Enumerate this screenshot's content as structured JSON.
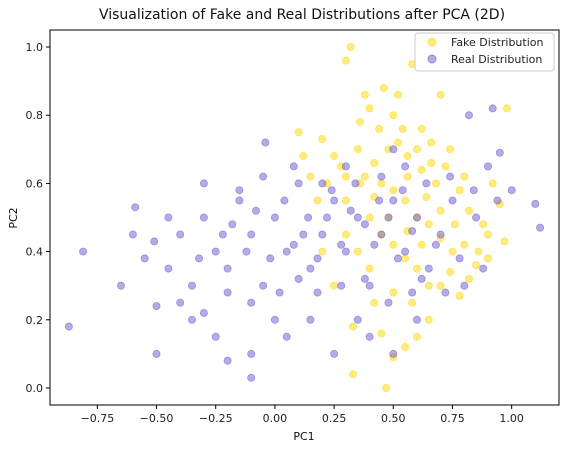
{
  "chart_data": {
    "type": "scatter",
    "title": "Visualization of Fake and Real Distributions after PCA (2D)",
    "xlabel": "PC1",
    "ylabel": "PC2",
    "xlim": [
      -0.95,
      1.2
    ],
    "ylim": [
      -0.05,
      1.05
    ],
    "xticks": [
      -0.75,
      -0.5,
      -0.25,
      0.0,
      0.25,
      0.5,
      0.75,
      1.0
    ],
    "xtick_labels": [
      "−0.75",
      "−0.50",
      "−0.25",
      "0.00",
      "0.25",
      "0.50",
      "0.75",
      "1.00"
    ],
    "yticks": [
      0.0,
      0.2,
      0.4,
      0.6,
      0.8,
      1.0
    ],
    "ytick_labels": [
      "0.0",
      "0.2",
      "0.4",
      "0.6",
      "0.8",
      "1.0"
    ],
    "grid": false,
    "legend_position": "top-right",
    "series": [
      {
        "name": "Fake Distribution",
        "color": "#FFD700",
        "points": [
          [
            0.32,
            1.0
          ],
          [
            0.47,
            0.0
          ],
          [
            0.58,
            0.95
          ],
          [
            0.3,
            0.96
          ],
          [
            0.98,
            0.82
          ],
          [
            0.1,
            0.75
          ],
          [
            0.2,
            0.73
          ],
          [
            0.4,
            0.82
          ],
          [
            0.5,
            0.8
          ],
          [
            0.62,
            0.76
          ],
          [
            0.7,
            0.86
          ],
          [
            0.92,
            0.6
          ],
          [
            0.95,
            0.54
          ],
          [
            0.9,
            0.45
          ],
          [
            0.97,
            0.43
          ],
          [
            0.85,
            0.36
          ],
          [
            0.82,
            0.32
          ],
          [
            0.78,
            0.27
          ],
          [
            0.65,
            0.2
          ],
          [
            0.6,
            0.15
          ],
          [
            0.55,
            0.12
          ],
          [
            0.45,
            0.16
          ],
          [
            0.33,
            0.18
          ],
          [
            0.33,
            0.04
          ],
          [
            0.5,
            0.09
          ],
          [
            0.25,
            0.3
          ],
          [
            0.2,
            0.4
          ],
          [
            0.3,
            0.55
          ],
          [
            0.38,
            0.62
          ],
          [
            0.42,
            0.66
          ],
          [
            0.45,
            0.6
          ],
          [
            0.5,
            0.58
          ],
          [
            0.55,
            0.55
          ],
          [
            0.6,
            0.5
          ],
          [
            0.65,
            0.48
          ],
          [
            0.7,
            0.44
          ],
          [
            0.75,
            0.4
          ],
          [
            0.48,
            0.7
          ],
          [
            0.52,
            0.72
          ],
          [
            0.56,
            0.68
          ],
          [
            0.35,
            0.7
          ],
          [
            0.28,
            0.65
          ],
          [
            0.22,
            0.6
          ],
          [
            0.18,
            0.55
          ],
          [
            0.4,
            0.5
          ],
          [
            0.45,
            0.45
          ],
          [
            0.5,
            0.42
          ],
          [
            0.55,
            0.38
          ],
          [
            0.6,
            0.35
          ],
          [
            0.65,
            0.3
          ],
          [
            0.4,
            0.35
          ],
          [
            0.35,
            0.4
          ],
          [
            0.3,
            0.45
          ],
          [
            0.42,
            0.25
          ],
          [
            0.5,
            0.28
          ],
          [
            0.58,
            0.25
          ],
          [
            0.68,
            0.6
          ],
          [
            0.72,
            0.65
          ],
          [
            0.78,
            0.58
          ],
          [
            0.82,
            0.52
          ],
          [
            0.88,
            0.48
          ],
          [
            0.62,
            0.64
          ],
          [
            0.66,
            0.72
          ],
          [
            0.44,
            0.76
          ],
          [
            0.36,
            0.78
          ],
          [
            0.25,
            0.68
          ],
          [
            0.15,
            0.62
          ],
          [
            0.12,
            0.68
          ],
          [
            0.46,
            0.88
          ],
          [
            0.52,
            0.86
          ],
          [
            0.38,
            0.86
          ],
          [
            0.56,
            0.62
          ],
          [
            0.64,
            0.56
          ],
          [
            0.7,
            0.52
          ],
          [
            0.76,
            0.48
          ],
          [
            0.8,
            0.42
          ],
          [
            0.86,
            0.4
          ],
          [
            0.9,
            0.38
          ],
          [
            0.74,
            0.34
          ],
          [
            0.7,
            0.3
          ],
          [
            0.62,
            0.42
          ],
          [
            0.56,
            0.46
          ],
          [
            0.48,
            0.5
          ],
          [
            0.42,
            0.56
          ],
          [
            0.36,
            0.6
          ],
          [
            0.3,
            0.62
          ],
          [
            0.6,
            0.7
          ],
          [
            0.54,
            0.76
          ],
          [
            0.66,
            0.66
          ],
          [
            0.74,
            0.7
          ],
          [
            0.8,
            0.62
          ]
        ]
      },
      {
        "name": "Real Distribution",
        "color": "#6A5ACD",
        "points": [
          [
            -0.87,
            0.18
          ],
          [
            -0.81,
            0.4
          ],
          [
            -0.65,
            0.3
          ],
          [
            -0.59,
            0.53
          ],
          [
            -0.51,
            0.43
          ],
          [
            -0.5,
            0.24
          ],
          [
            -0.5,
            0.1
          ],
          [
            -0.45,
            0.35
          ],
          [
            -0.4,
            0.45
          ],
          [
            -0.35,
            0.3
          ],
          [
            -0.3,
            0.5
          ],
          [
            -0.25,
            0.4
          ],
          [
            -0.2,
            0.35
          ],
          [
            -0.15,
            0.55
          ],
          [
            -0.1,
            0.45
          ],
          [
            -0.05,
            0.3
          ],
          [
            0.0,
            0.5
          ],
          [
            0.05,
            0.4
          ],
          [
            0.1,
            0.6
          ],
          [
            0.15,
            0.35
          ],
          [
            0.2,
            0.45
          ],
          [
            0.25,
            0.55
          ],
          [
            0.3,
            0.4
          ],
          [
            0.35,
            0.5
          ],
          [
            0.4,
            0.3
          ],
          [
            0.45,
            0.45
          ],
          [
            0.5,
            0.55
          ],
          [
            0.55,
            0.4
          ],
          [
            0.6,
            0.5
          ],
          [
            0.65,
            0.35
          ],
          [
            0.7,
            0.45
          ],
          [
            0.75,
            0.55
          ],
          [
            0.8,
            0.3
          ],
          [
            0.85,
            0.5
          ],
          [
            0.9,
            0.65
          ],
          [
            0.95,
            0.69
          ],
          [
            1.0,
            0.58
          ],
          [
            1.1,
            0.54
          ],
          [
            1.12,
            0.47
          ],
          [
            0.92,
            0.82
          ],
          [
            0.82,
            0.8
          ],
          [
            -0.04,
            0.72
          ],
          [
            -0.35,
            0.2
          ],
          [
            -0.25,
            0.15
          ],
          [
            -0.1,
            0.1
          ],
          [
            0.0,
            0.2
          ],
          [
            0.05,
            0.15
          ],
          [
            0.15,
            0.2
          ],
          [
            0.25,
            0.1
          ],
          [
            0.35,
            0.2
          ],
          [
            0.4,
            0.15
          ],
          [
            0.5,
            0.1
          ],
          [
            0.6,
            0.2
          ],
          [
            -0.2,
            0.08
          ],
          [
            -0.1,
            0.03
          ],
          [
            0.2,
            0.6
          ],
          [
            0.3,
            0.65
          ],
          [
            0.45,
            0.62
          ],
          [
            0.5,
            0.7
          ],
          [
            0.55,
            0.65
          ],
          [
            -0.45,
            0.5
          ],
          [
            -0.3,
            0.6
          ],
          [
            -0.15,
            0.58
          ],
          [
            -0.05,
            0.62
          ],
          [
            0.08,
            0.65
          ],
          [
            -0.6,
            0.45
          ],
          [
            -0.55,
            0.38
          ],
          [
            -0.4,
            0.25
          ],
          [
            -0.3,
            0.22
          ],
          [
            -0.2,
            0.28
          ],
          [
            -0.1,
            0.25
          ],
          [
            0.02,
            0.28
          ],
          [
            0.1,
            0.32
          ],
          [
            0.18,
            0.38
          ],
          [
            0.28,
            0.42
          ],
          [
            0.38,
            0.48
          ],
          [
            0.48,
            0.5
          ],
          [
            0.58,
            0.46
          ],
          [
            0.68,
            0.42
          ],
          [
            0.78,
            0.38
          ],
          [
            0.88,
            0.35
          ],
          [
            0.12,
            0.45
          ],
          [
            0.22,
            0.5
          ],
          [
            0.32,
            0.52
          ],
          [
            0.42,
            0.42
          ],
          [
            0.52,
            0.38
          ],
          [
            0.62,
            0.32
          ],
          [
            0.72,
            0.28
          ],
          [
            -0.22,
            0.45
          ],
          [
            -0.12,
            0.4
          ],
          [
            -0.02,
            0.38
          ],
          [
            0.08,
            0.42
          ],
          [
            0.18,
            0.28
          ],
          [
            0.28,
            0.3
          ],
          [
            0.38,
            0.32
          ],
          [
            0.48,
            0.25
          ],
          [
            0.58,
            0.28
          ],
          [
            -0.32,
            0.38
          ],
          [
            -0.18,
            0.48
          ],
          [
            -0.08,
            0.52
          ],
          [
            0.04,
            0.55
          ],
          [
            0.14,
            0.5
          ],
          [
            0.24,
            0.58
          ],
          [
            0.34,
            0.6
          ],
          [
            0.44,
            0.55
          ],
          [
            0.54,
            0.58
          ],
          [
            0.64,
            0.6
          ],
          [
            0.74,
            0.62
          ],
          [
            0.84,
            0.58
          ],
          [
            0.94,
            0.55
          ]
        ]
      }
    ]
  }
}
